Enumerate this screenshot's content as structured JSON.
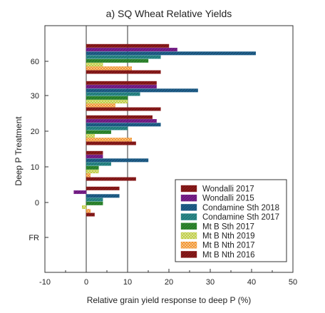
{
  "chart_data": {
    "type": "bar",
    "orientation": "horizontal",
    "title": "a) SQ Wheat Relative Yields",
    "xlabel": "Relative grain yield response to deep P (%)",
    "ylabel": "Deep P Treatment",
    "xlim": [
      -10,
      50
    ],
    "xticks": [
      -10,
      0,
      10,
      20,
      30,
      40,
      50
    ],
    "xgrid_lines": [
      0,
      10
    ],
    "grid": false,
    "legend_position": "bottom-right",
    "categories": [
      "60",
      "30",
      "20",
      "10",
      "0",
      "FR"
    ],
    "series": [
      {
        "name": "Wondalli 2017",
        "color": "#8b1a1a",
        "pattern": "crosshatch",
        "values": [
          20,
          17,
          16,
          4,
          8,
          0
        ]
      },
      {
        "name": "Wondalli 2015",
        "color": "#7a1f8c",
        "pattern": "crosshatch",
        "values": [
          22,
          17,
          17,
          4,
          -3,
          0
        ]
      },
      {
        "name": "Condamine Sth 2018",
        "color": "#1f5f8b",
        "pattern": "crosshatch",
        "values": [
          41,
          27,
          18,
          15,
          8,
          0
        ]
      },
      {
        "name": "Condamine Sth 2017",
        "color": "#2a8a8a",
        "pattern": "crosshatch",
        "values": [
          18,
          13,
          10,
          6,
          4,
          0
        ]
      },
      {
        "name": "Mt B Sth 2017",
        "color": "#2f8a2f",
        "pattern": "crosshatch",
        "values": [
          15,
          10,
          6,
          3,
          4,
          0
        ]
      },
      {
        "name": "Mt B Nth 2019",
        "color": "#b8c832",
        "pattern": "checker",
        "values": [
          4,
          10,
          2,
          3,
          -1,
          0
        ]
      },
      {
        "name": "Mt B Nth 2017",
        "color": "#f08a1a",
        "pattern": "checker",
        "values": [
          11,
          7,
          11,
          1,
          1,
          0
        ]
      },
      {
        "name": "Mt B Nth 2016",
        "color": "#8b1a1a",
        "pattern": "crosshatch",
        "values": [
          18,
          18,
          12,
          12,
          2,
          0
        ]
      }
    ]
  }
}
